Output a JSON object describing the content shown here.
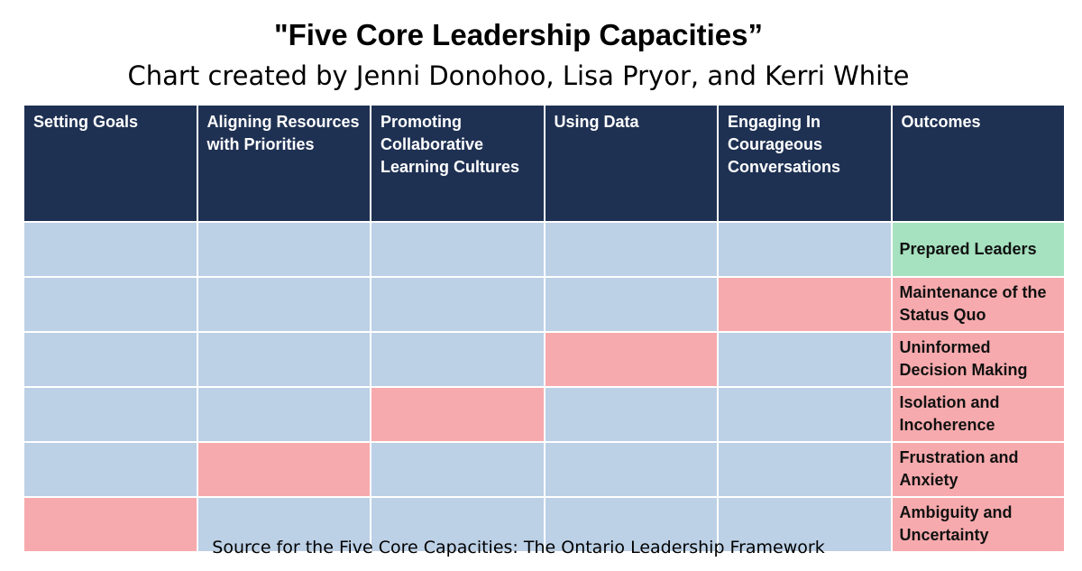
{
  "title": "\"Five Core Leadership Capacities”",
  "subtitle": "Chart created by Jenni Donohoo, Lisa Pryor, and Kerri White",
  "headers": [
    "Setting Goals",
    "Aligning Resources with Priorities",
    "Promoting Collaborative Learning Cultures",
    "Using Data",
    "Engaging In Courageous Conversations",
    "Outcomes"
  ],
  "outcomes": [
    "Prepared Leaders",
    "Maintenance of the Status Quo",
    "Uninformed Decision Making",
    "Isolation and Incoherence",
    "Frustration and Anxiety",
    "Ambiguity and Uncertainty"
  ],
  "source": "Source for the Five Core Capacities: The Ontario Leadership Framework",
  "colors": {
    "header": "#1f3153",
    "present": "#bcd0e6",
    "missing": "#f7aaad",
    "positive_outcome": "#a6e2c0"
  }
}
